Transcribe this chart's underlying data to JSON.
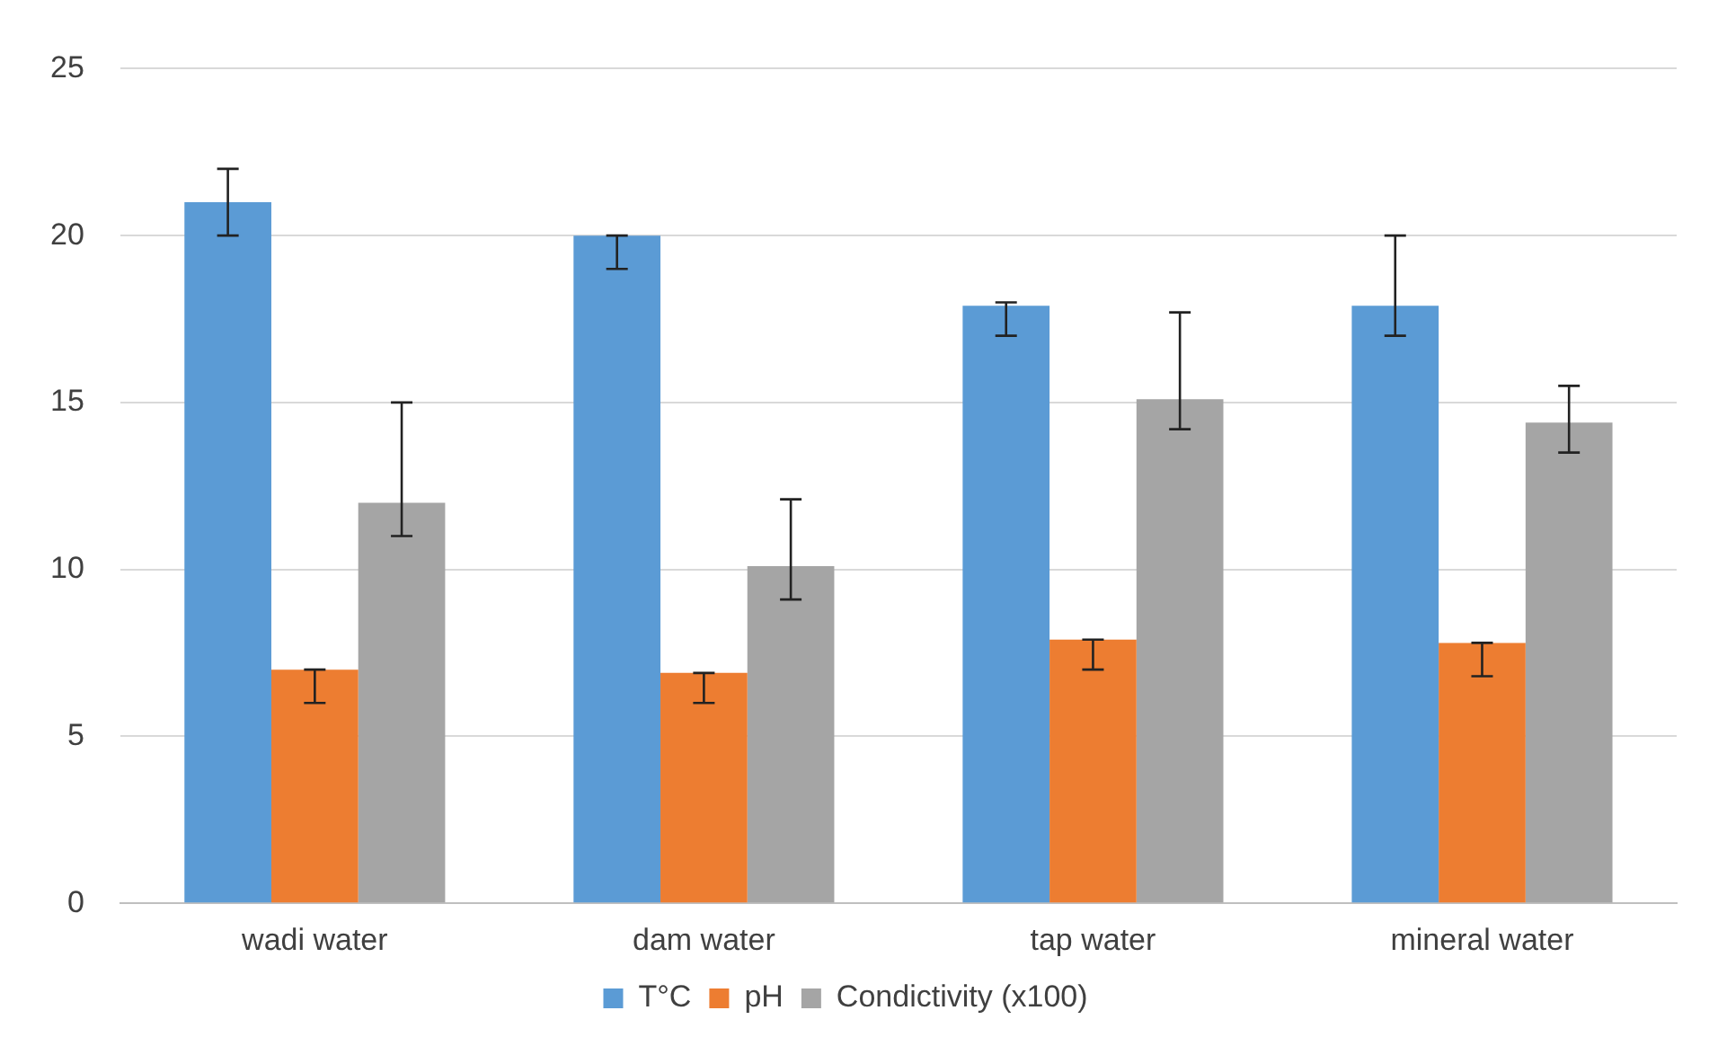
{
  "chart_data": {
    "type": "bar",
    "categories": [
      "wadi water",
      "dam water",
      "tap water",
      "mineral water"
    ],
    "series": [
      {
        "name": "T°C",
        "color": "#5b9bd5",
        "values": [
          21,
          20,
          17.9,
          17.9
        ],
        "errors": [
          [
            20,
            22
          ],
          [
            19,
            20
          ],
          [
            17,
            18
          ],
          [
            17,
            20
          ]
        ]
      },
      {
        "name": "pH",
        "color": "#ed7d31",
        "values": [
          7,
          6.9,
          7.9,
          7.8
        ],
        "errors": [
          [
            6,
            7
          ],
          [
            6,
            6.9
          ],
          [
            7,
            7.9
          ],
          [
            6.8,
            7.8
          ]
        ]
      },
      {
        "name": "Condictivity (x100)",
        "color": "#a5a5a5",
        "values": [
          12,
          10.1,
          15.1,
          14.4
        ],
        "errors": [
          [
            11,
            15
          ],
          [
            9.1,
            12.1
          ],
          [
            14.2,
            17.7
          ],
          [
            13.5,
            15.5
          ]
        ]
      }
    ],
    "ylim": [
      0,
      25
    ],
    "yticks": [
      0,
      5,
      10,
      15,
      20,
      25
    ],
    "grid": "y",
    "legend": "bottom"
  }
}
